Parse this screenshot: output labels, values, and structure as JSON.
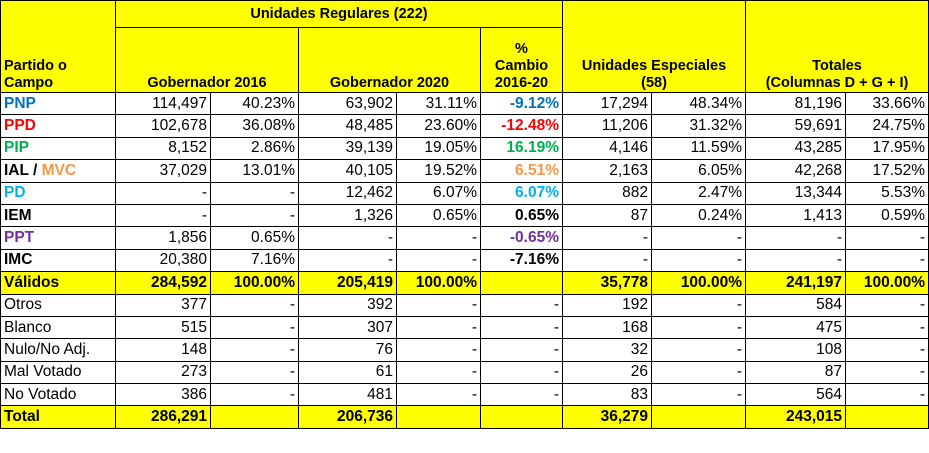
{
  "header": {
    "group": "Unidades Regulares (222)",
    "party": [
      "Partido o",
      "Campo"
    ],
    "gov2016": [
      "Gobernador 2016"
    ],
    "gov2020": [
      "Gobernador 2020"
    ],
    "change": [
      "%",
      "Cambio",
      "2016-20"
    ],
    "special": [
      "Unidades Especiales",
      "(58)"
    ],
    "totals": [
      "Totales",
      "(Columnas D + G + I)"
    ]
  },
  "table": {
    "rows": [
      {
        "style": "party",
        "label_parts": [
          {
            "text": "PNP",
            "color": "#0070c0"
          }
        ],
        "change_color": "#0070c0",
        "cells": [
          "114,497",
          "40.23%",
          "63,902",
          "31.11%",
          "-9.12%",
          "17,294",
          "48.34%",
          "81,196",
          "33.66%"
        ]
      },
      {
        "style": "party",
        "label_parts": [
          {
            "text": "PPD",
            "color": "#ff0000"
          }
        ],
        "change_color": "#ff0000",
        "cells": [
          "102,678",
          "36.08%",
          "48,485",
          "23.60%",
          "-12.48%",
          "11,206",
          "31.32%",
          "59,691",
          "24.75%"
        ]
      },
      {
        "style": "party",
        "label_parts": [
          {
            "text": "PIP",
            "color": "#00b050"
          }
        ],
        "change_color": "#00b050",
        "cells": [
          "8,152",
          "2.86%",
          "39,139",
          "19.05%",
          "16.19%",
          "4,146",
          "11.59%",
          "43,285",
          "17.95%"
        ]
      },
      {
        "style": "party",
        "label_parts": [
          {
            "text": "IAL",
            "color": "#000000"
          },
          {
            "text": "/",
            "color": "#000000"
          },
          {
            "text": "MVC",
            "color": "#f79646"
          }
        ],
        "change_color": "#f79646",
        "cells": [
          "37,029",
          "13.01%",
          "40,105",
          "19.52%",
          "6.51%",
          "2,163",
          "6.05%",
          "42,268",
          "17.52%"
        ]
      },
      {
        "style": "party",
        "label_parts": [
          {
            "text": "PD",
            "color": "#00b0f0"
          }
        ],
        "change_color": "#00b0f0",
        "cells": [
          "-",
          "-",
          "12,462",
          "6.07%",
          "6.07%",
          "882",
          "2.47%",
          "13,344",
          "5.53%"
        ]
      },
      {
        "style": "party",
        "label_parts": [
          {
            "text": "IEM",
            "color": "#000000"
          }
        ],
        "change_color": "#000000",
        "cells": [
          "-",
          "-",
          "1,326",
          "0.65%",
          "0.65%",
          "87",
          "0.24%",
          "1,413",
          "0.59%"
        ]
      },
      {
        "style": "party",
        "label_parts": [
          {
            "text": "PPT",
            "color": "#7030a0"
          }
        ],
        "change_color": "#7030a0",
        "cells": [
          "1,856",
          "0.65%",
          "-",
          "-",
          "-0.65%",
          "-",
          "-",
          "-",
          "-"
        ]
      },
      {
        "style": "party",
        "label_parts": [
          {
            "text": "IMC",
            "color": "#000000"
          }
        ],
        "change_color": "#000000",
        "cells": [
          "20,380",
          "7.16%",
          "-",
          "-",
          "-7.16%",
          "-",
          "-",
          "-",
          "-"
        ]
      },
      {
        "style": "total",
        "label_parts": [
          {
            "text": "Válidos",
            "color": "#000000"
          }
        ],
        "cells": [
          "284,592",
          "100.00%",
          "205,419",
          "100.00%",
          null,
          "35,778",
          "100.00%",
          "241,197",
          "100.00%"
        ]
      },
      {
        "style": "other",
        "label_parts": [
          {
            "text": "Otros",
            "color": "#000000"
          }
        ],
        "cells": [
          "377",
          "-",
          "392",
          "-",
          "-",
          "192",
          "-",
          "584",
          "-"
        ]
      },
      {
        "style": "other",
        "label_parts": [
          {
            "text": "Blanco",
            "color": "#000000"
          }
        ],
        "cells": [
          "515",
          "-",
          "307",
          "-",
          "-",
          "168",
          "-",
          "475",
          "-"
        ]
      },
      {
        "style": "other",
        "label_parts": [
          {
            "text": "Nulo/No Adj.",
            "color": "#000000"
          }
        ],
        "cells": [
          "148",
          "-",
          "76",
          "-",
          "-",
          "32",
          "-",
          "108",
          "-"
        ]
      },
      {
        "style": "other",
        "label_parts": [
          {
            "text": "Mal Votado",
            "color": "#000000"
          }
        ],
        "cells": [
          "273",
          "-",
          "61",
          "-",
          "-",
          "26",
          "-",
          "87",
          "-"
        ]
      },
      {
        "style": "other",
        "label_parts": [
          {
            "text": "No Votado",
            "color": "#000000"
          }
        ],
        "cells": [
          "386",
          "-",
          "481",
          "-",
          "-",
          "83",
          "-",
          "564",
          "-"
        ]
      },
      {
        "style": "total",
        "label_parts": [
          {
            "text": "Total",
            "color": "#000000"
          }
        ],
        "cells": [
          "286,291",
          null,
          "206,736",
          null,
          null,
          "36,279",
          null,
          "243,015",
          null
        ]
      }
    ]
  }
}
